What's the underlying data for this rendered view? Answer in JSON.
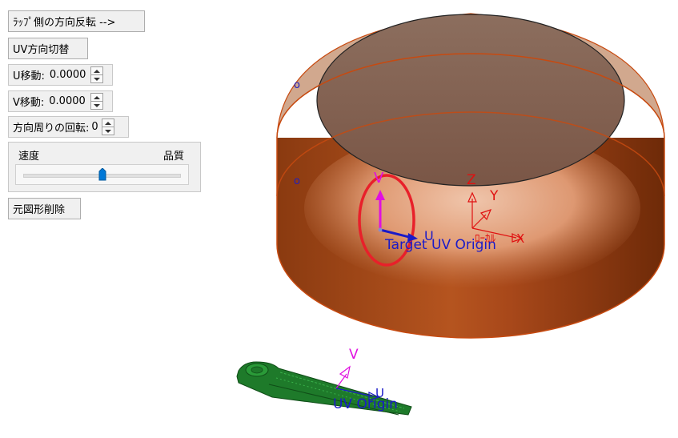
{
  "toolbar": {
    "wrap_flip_label": "ﾗｯﾌﾟ側の方向反転 -->",
    "uv_switch_label": "UV方向切替",
    "u_move": {
      "label": "U移動:",
      "value": "0.0000"
    },
    "v_move": {
      "label": "V移動:",
      "value": "0.0000"
    },
    "rotation": {
      "label": "方向周りの回転:",
      "value": "0"
    },
    "speed_quality": {
      "left_label": "速度",
      "right_label": "品質",
      "position": 0.5
    },
    "delete_label": "元図形削除"
  },
  "viewport": {
    "target_axes": {
      "v": "V",
      "u": "U",
      "origin": "Target UV Origin"
    },
    "world_axes": {
      "z": "Z",
      "y": "Y",
      "x": "X",
      "origin_fragment": "ﾛｰｶﾙ"
    },
    "source_axes": {
      "v": "V",
      "u": "U",
      "origin": "UV Origin"
    },
    "vertex_marks": [
      "o",
      "o"
    ],
    "colors": {
      "cylinder_side": "#a0441a",
      "cylinder_top": "#8a6552",
      "edge": "#c74a10",
      "highlight_ellipse": "#e8202a",
      "axis_v": "#e010e0",
      "axis_u": "#1010c0",
      "world_axis": "#e01010",
      "source_part": "#1e7a2a"
    }
  }
}
